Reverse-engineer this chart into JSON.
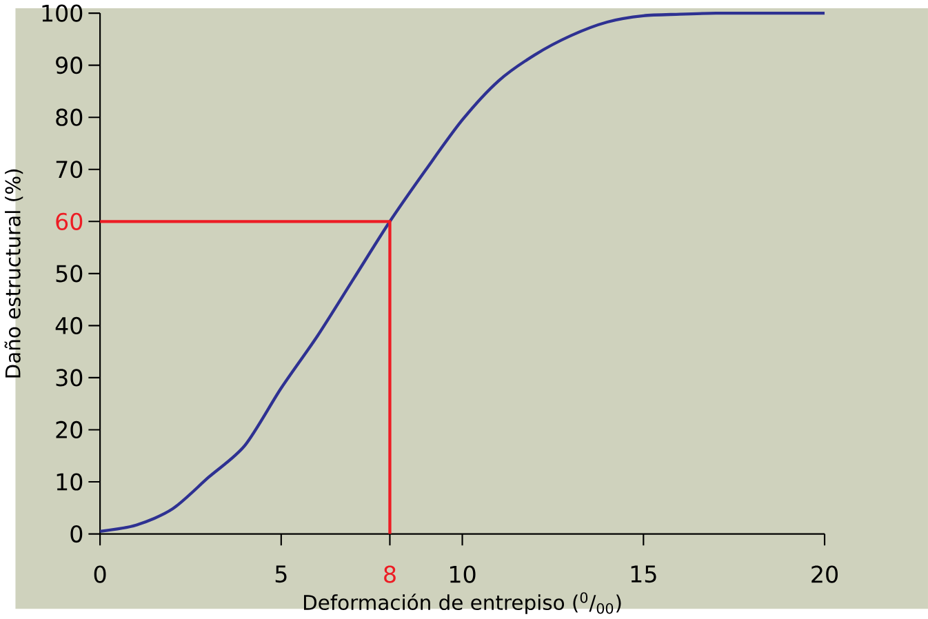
{
  "chart_data": {
    "type": "line",
    "xlabel": "Deformación de entrepiso ($^{0}$/$_{00}$)",
    "ylabel": "Daño estructural (%)",
    "xlim": [
      0,
      20
    ],
    "ylim": [
      0,
      100
    ],
    "xticks": [
      0,
      5,
      8,
      10,
      15,
      20
    ],
    "yticks": [
      0,
      10,
      20,
      30,
      40,
      50,
      60,
      70,
      80,
      90,
      100
    ],
    "grid": false,
    "legend": false,
    "marker": "none",
    "line_style": "solid",
    "series": [
      {
        "color": "#2e3192",
        "x": [
          0,
          1,
          2,
          3,
          4,
          5,
          6,
          7,
          8,
          9,
          10,
          11,
          12,
          13,
          14,
          15,
          16,
          17,
          18,
          19,
          20
        ],
        "values": [
          0.5,
          1.7,
          4.8,
          10.9,
          17,
          28,
          38,
          49,
          60,
          70,
          79.5,
          87,
          92,
          95.7,
          98.3,
          99.5,
          99.8,
          100,
          100,
          100,
          100
        ]
      },
      {
        "color": "#ed1c24",
        "x": [
          0,
          8,
          8
        ],
        "values": [
          60,
          60,
          0
        ]
      }
    ]
  }
}
